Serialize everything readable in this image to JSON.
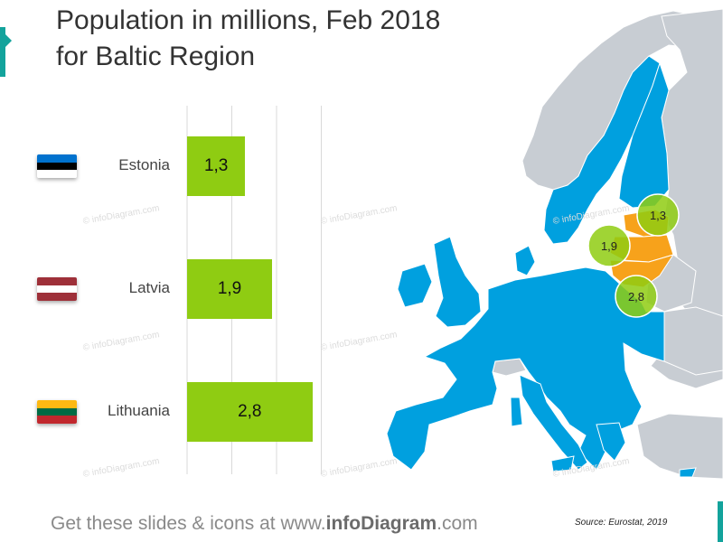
{
  "title": {
    "line1": "Population in millions, Feb 2018",
    "line2": "for Baltic Region"
  },
  "chart_data": {
    "type": "bar",
    "orientation": "horizontal",
    "categories": [
      "Estonia",
      "Latvia",
      "Lithuania"
    ],
    "values": [
      1.3,
      1.9,
      2.8
    ],
    "value_labels": [
      "1,3",
      "1,9",
      "2,8"
    ],
    "title": "Population in millions, Feb 2018 for Baltic Region",
    "xlabel": "",
    "ylabel": "",
    "xlim": [
      0,
      3
    ],
    "grid": true,
    "legend": "none",
    "bar_color": "#8fcc12",
    "gridline_color": "#d9d9d9"
  },
  "map": {
    "eu_color": "#00a0df",
    "baltic_color": "#f7a21b",
    "other_color": "#c8cdd3",
    "sea_color": "#ffffff",
    "markers": [
      {
        "country": "Estonia",
        "label": "1,3"
      },
      {
        "country": "Latvia",
        "label": "1,9"
      },
      {
        "country": "Lithuania",
        "label": "2,8"
      }
    ],
    "marker_color": "#8fcc12"
  },
  "flags": {
    "Estonia": [
      "#0072ce",
      "#000000",
      "#ffffff"
    ],
    "Latvia": [
      "#9e3039",
      "#ffffff",
      "#9e3039"
    ],
    "Lithuania": [
      "#fdb913",
      "#006a44",
      "#c1272d"
    ]
  },
  "watermark_text": "© infoDiagram.com",
  "footer": {
    "prefix": "Get these slides & icons at www.",
    "brand": "infoDiagram",
    "suffix": ".com"
  },
  "source": "Source: Eurostat, 2019",
  "accent_color": "#13a39c"
}
